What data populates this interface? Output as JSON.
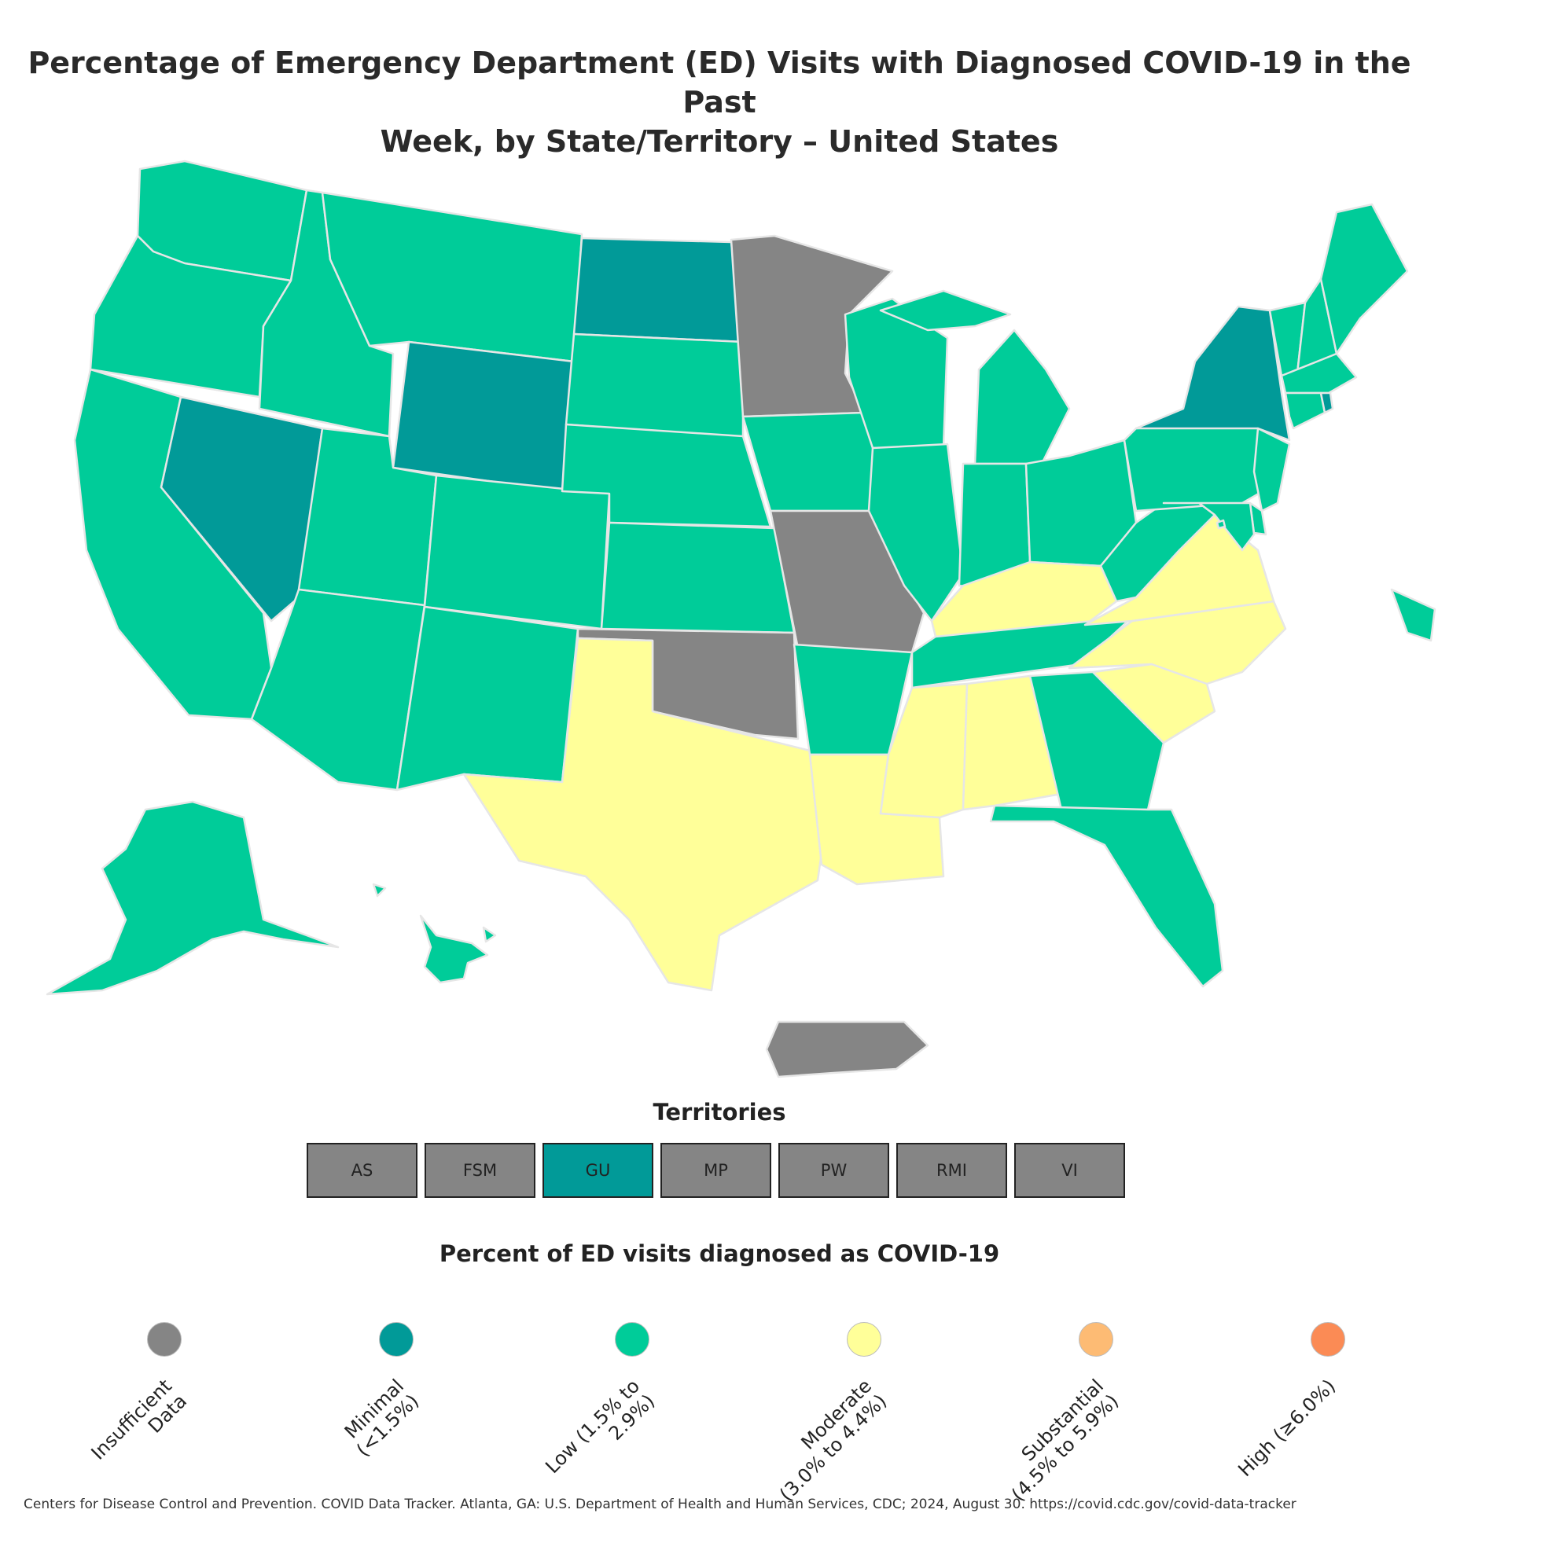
{
  "title_line1": "Percentage of Emergency Department (ED) Visits with Diagnosed COVID-19 in the Past",
  "title_line2": "Week, by State/Territory – United States",
  "colors": {
    "insufficient": "#858585",
    "minimal": "#019a98",
    "low": "#00cc99",
    "moderate": "#ffff99",
    "substantial": "#fdbb74",
    "high": "#fb8b55"
  },
  "regions": [
    {
      "name": "Washington",
      "category": "low"
    },
    {
      "name": "Oregon",
      "category": "low"
    },
    {
      "name": "California",
      "category": "low"
    },
    {
      "name": "Nevada",
      "category": "minimal"
    },
    {
      "name": "Idaho",
      "category": "low"
    },
    {
      "name": "Montana",
      "category": "low"
    },
    {
      "name": "Wyoming",
      "category": "minimal"
    },
    {
      "name": "Utah",
      "category": "low"
    },
    {
      "name": "Arizona",
      "category": "low"
    },
    {
      "name": "Colorado",
      "category": "low"
    },
    {
      "name": "New Mexico",
      "category": "low"
    },
    {
      "name": "North Dakota",
      "category": "minimal"
    },
    {
      "name": "South Dakota",
      "category": "low"
    },
    {
      "name": "Nebraska",
      "category": "low"
    },
    {
      "name": "Kansas",
      "category": "low"
    },
    {
      "name": "Oklahoma",
      "category": "insufficient"
    },
    {
      "name": "Texas",
      "category": "moderate"
    },
    {
      "name": "Minnesota",
      "category": "insufficient"
    },
    {
      "name": "Iowa",
      "category": "low"
    },
    {
      "name": "Missouri",
      "category": "insufficient"
    },
    {
      "name": "Arkansas",
      "category": "low"
    },
    {
      "name": "Louisiana",
      "category": "moderate"
    },
    {
      "name": "Wisconsin",
      "category": "low"
    },
    {
      "name": "Illinois",
      "category": "low"
    },
    {
      "name": "Michigan",
      "category": "low"
    },
    {
      "name": "Indiana",
      "category": "low"
    },
    {
      "name": "Ohio",
      "category": "low"
    },
    {
      "name": "Kentucky",
      "category": "moderate"
    },
    {
      "name": "Tennessee",
      "category": "low"
    },
    {
      "name": "Mississippi",
      "category": "moderate"
    },
    {
      "name": "Alabama",
      "category": "moderate"
    },
    {
      "name": "Georgia",
      "category": "low"
    },
    {
      "name": "Florida",
      "category": "low"
    },
    {
      "name": "South Carolina",
      "category": "moderate"
    },
    {
      "name": "North Carolina",
      "category": "moderate"
    },
    {
      "name": "Virginia",
      "category": "moderate"
    },
    {
      "name": "West Virginia",
      "category": "low"
    },
    {
      "name": "Pennsylvania",
      "category": "low"
    },
    {
      "name": "New York",
      "category": "minimal"
    },
    {
      "name": "New Jersey",
      "category": "low"
    },
    {
      "name": "Delaware",
      "category": "low"
    },
    {
      "name": "Maryland",
      "category": "low"
    },
    {
      "name": "Vermont",
      "category": "low"
    },
    {
      "name": "New Hampshire",
      "category": "low"
    },
    {
      "name": "Maine",
      "category": "low"
    },
    {
      "name": "Massachusetts",
      "category": "low"
    },
    {
      "name": "Connecticut",
      "category": "low"
    },
    {
      "name": "Rhode Island",
      "category": "minimal"
    },
    {
      "name": "District of Columbia",
      "category": "low"
    },
    {
      "name": "Alaska",
      "category": "low"
    },
    {
      "name": "Hawaii",
      "category": "low"
    },
    {
      "name": "Puerto Rico",
      "category": "insufficient"
    }
  ],
  "territories_title": "Territories",
  "territories": [
    {
      "label": "AS",
      "category": "insufficient"
    },
    {
      "label": "FSM",
      "category": "insufficient"
    },
    {
      "label": "GU",
      "category": "minimal"
    },
    {
      "label": "MP",
      "category": "insufficient"
    },
    {
      "label": "PW",
      "category": "insufficient"
    },
    {
      "label": "RMI",
      "category": "insufficient"
    },
    {
      "label": "VI",
      "category": "insufficient"
    }
  ],
  "legend_title": "Percent of ED visits diagnosed as COVID-19",
  "legend": [
    {
      "category": "insufficient",
      "line1": "Insufficient",
      "line2": "Data"
    },
    {
      "category": "minimal",
      "line1": "Minimal",
      "line2": "(<1.5%)"
    },
    {
      "category": "low",
      "line1": "Low (1.5% to",
      "line2": "2.9%)"
    },
    {
      "category": "moderate",
      "line1": "Moderate",
      "line2": "(3.0% to 4.4%)"
    },
    {
      "category": "substantial",
      "line1": "Substantial",
      "line2": "(4.5% to 5.9%)"
    },
    {
      "category": "high",
      "line1": "High (≥6.0%)",
      "line2": ""
    }
  ],
  "citation": "Centers for Disease Control and Prevention. COVID Data Tracker. Atlanta, GA: U.S. Department of Health and Human Services, CDC; 2024, August 30. https://covid.cdc.gov/covid-data-tracker"
}
